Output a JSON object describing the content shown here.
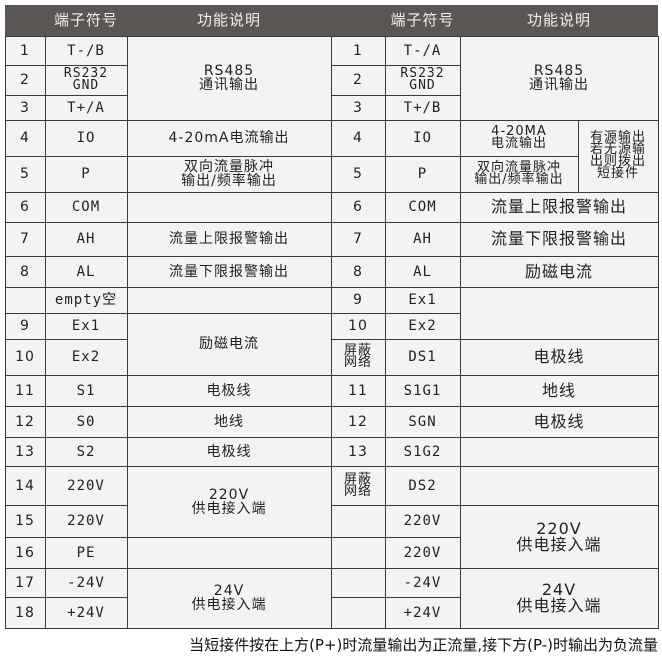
{
  "header": {
    "symbol": "端子符号",
    "function": "功能说明"
  },
  "left": {
    "rows": [
      {
        "num": "1",
        "sym": "T-/B"
      },
      {
        "num": "2",
        "sym": "RS232\nGND"
      },
      {
        "num": "3",
        "sym": "T+/A"
      },
      {
        "num": "4",
        "sym": "IO"
      },
      {
        "num": "5",
        "sym": "P"
      },
      {
        "num": "6",
        "sym": "COM"
      },
      {
        "num": "7",
        "sym": "AH"
      },
      {
        "num": "8",
        "sym": "AL"
      },
      {
        "num": "",
        "sym": "empty空"
      },
      {
        "num": "9",
        "sym": "Ex1"
      },
      {
        "num": "10",
        "sym": "Ex2"
      },
      {
        "num": "11",
        "sym": "S1"
      },
      {
        "num": "12",
        "sym": "S0"
      },
      {
        "num": "13",
        "sym": "S2"
      },
      {
        "num": "14",
        "sym": "220V"
      },
      {
        "num": "15",
        "sym": "220V"
      },
      {
        "num": "16",
        "sym": "PE"
      },
      {
        "num": "17",
        "sym": "-24V"
      },
      {
        "num": "18",
        "sym": "+24V"
      }
    ],
    "functions": {
      "rs485": "RS485\n通讯输出",
      "current": "4-20mA电流输出",
      "pulse": "双向流量脉冲\n输出/频率输出",
      "com": "",
      "ah": "流量上限报警输出",
      "al": "流量下限报警输出",
      "empty": "",
      "excitation": "励磁电流",
      "s1": "电极线",
      "s0": "地线",
      "s2": "电极线",
      "power220": "220V\n供电接入端",
      "pe": "",
      "power24": "24V\n供电接入端"
    }
  },
  "right": {
    "rows": [
      {
        "num": "1",
        "sym": "T-/A"
      },
      {
        "num": "2",
        "sym": "RS232\nGND"
      },
      {
        "num": "3",
        "sym": "T+/B"
      },
      {
        "num": "4",
        "sym": "IO"
      },
      {
        "num": "5",
        "sym": "P"
      },
      {
        "num": "6",
        "sym": "COM"
      },
      {
        "num": "7",
        "sym": "AH"
      },
      {
        "num": "8",
        "sym": "AL"
      },
      {
        "num": "9",
        "sym": "Ex1"
      },
      {
        "num": "10",
        "sym": "Ex2"
      },
      {
        "num": "屏蔽\n网络",
        "sym": "DS1"
      },
      {
        "num": "11",
        "sym": "S1G1"
      },
      {
        "num": "12",
        "sym": "SGN"
      },
      {
        "num": "13",
        "sym": "S1G2"
      },
      {
        "num": "屏蔽\n网络",
        "sym": "DS2"
      },
      {
        "num": "",
        "sym": "220V"
      },
      {
        "num": "",
        "sym": "220V"
      },
      {
        "num": "",
        "sym": "-24V"
      },
      {
        "num": "",
        "sym": "+24V"
      }
    ],
    "functions": {
      "rs485": "RS485\n通讯输出",
      "current": "4-20MA\n电流输出",
      "pulse": "双向流量脉冲\n输出/频率输出",
      "note": "有源输出\n若无源输\n出则拨出\n短接件",
      "com": "流量上限报警输出",
      "ah": "流量下限报警输出",
      "al": "励磁电流",
      "ex": "",
      "ds1": "电极线",
      "s1g1": "地线",
      "sgn": "电极线",
      "s1g2": "",
      "ds2": "",
      "power220": "220V\n供电接入端",
      "power24": "24V\n供电接入端"
    }
  },
  "footer": "当短接件按在上方(P+)时流量输出为正流量,接下方(P-)时输出为负流量"
}
